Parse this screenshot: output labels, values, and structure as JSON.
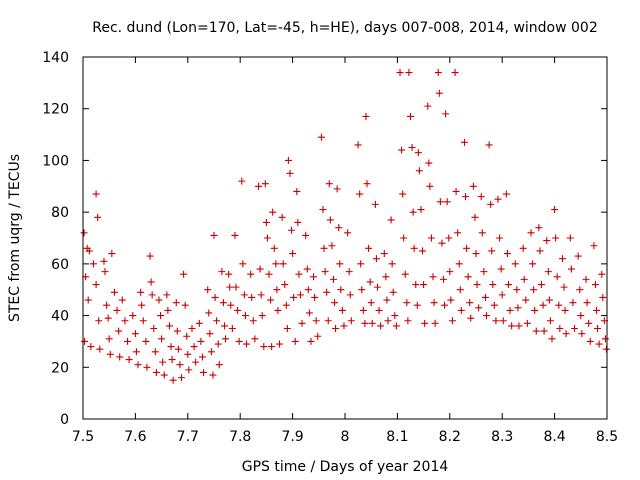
{
  "chart_data": {
    "type": "scatter",
    "title": "Rec. dund (Lon=170, Lat=-45, h=HE), days 007-008, 2014, window 002",
    "xlabel": "GPS time / Days of year 2014",
    "ylabel": "STEC from uqrg / TECUs",
    "xlim": [
      7.5,
      8.5
    ],
    "ylim": [
      0,
      140
    ],
    "xticks": [
      7.5,
      7.6,
      7.7,
      7.8,
      7.9,
      8.0,
      8.1,
      8.2,
      8.3,
      8.4,
      8.5
    ],
    "xtick_labels": [
      "7.5",
      "7.6",
      "7.7",
      "7.8",
      "7.9",
      "8",
      "8.1",
      "8.2",
      "8.3",
      "8.4",
      "8.5"
    ],
    "yticks": [
      0,
      20,
      40,
      60,
      80,
      100,
      120,
      140
    ],
    "ytick_labels": [
      "0",
      "20",
      "40",
      "60",
      "80",
      "100",
      "120",
      "140"
    ],
    "grid": false,
    "marker": "+",
    "marker_color": "#cc0000",
    "series": [
      {
        "name": "STEC",
        "points": [
          [
            7.502,
            72
          ],
          [
            7.505,
            55
          ],
          [
            7.503,
            30
          ],
          [
            7.508,
            66
          ],
          [
            7.512,
            65
          ],
          [
            7.51,
            46
          ],
          [
            7.515,
            28
          ],
          [
            7.525,
            87
          ],
          [
            7.528,
            78
          ],
          [
            7.52,
            60
          ],
          [
            7.525,
            52
          ],
          [
            7.53,
            38
          ],
          [
            7.532,
            27
          ],
          [
            7.54,
            61
          ],
          [
            7.542,
            57
          ],
          [
            7.545,
            44
          ],
          [
            7.548,
            39
          ],
          [
            7.55,
            31
          ],
          [
            7.552,
            25
          ],
          [
            7.555,
            64
          ],
          [
            7.56,
            49
          ],
          [
            7.565,
            42
          ],
          [
            7.568,
            34
          ],
          [
            7.57,
            24
          ],
          [
            7.575,
            46
          ],
          [
            7.58,
            38
          ],
          [
            7.585,
            30
          ],
          [
            7.588,
            23
          ],
          [
            7.595,
            40
          ],
          [
            7.6,
            33
          ],
          [
            7.602,
            26
          ],
          [
            7.605,
            21
          ],
          [
            7.61,
            49
          ],
          [
            7.612,
            44
          ],
          [
            7.615,
            38
          ],
          [
            7.62,
            30
          ],
          [
            7.622,
            20
          ],
          [
            7.628,
            63
          ],
          [
            7.63,
            53
          ],
          [
            7.632,
            48
          ],
          [
            7.635,
            35
          ],
          [
            7.638,
            26
          ],
          [
            7.64,
            18
          ],
          [
            7.645,
            46
          ],
          [
            7.648,
            40
          ],
          [
            7.65,
            31
          ],
          [
            7.652,
            22
          ],
          [
            7.655,
            17
          ],
          [
            7.66,
            48
          ],
          [
            7.662,
            42
          ],
          [
            7.665,
            36
          ],
          [
            7.668,
            28
          ],
          [
            7.67,
            23
          ],
          [
            7.672,
            15
          ],
          [
            7.678,
            45
          ],
          [
            7.68,
            34
          ],
          [
            7.682,
            27
          ],
          [
            7.685,
            21
          ],
          [
            7.688,
            16
          ],
          [
            7.692,
            56
          ],
          [
            7.695,
            44
          ],
          [
            7.698,
            32
          ],
          [
            7.7,
            25
          ],
          [
            7.702,
            19
          ],
          [
            7.708,
            35
          ],
          [
            7.712,
            28
          ],
          [
            7.715,
            22
          ],
          [
            7.722,
            37
          ],
          [
            7.725,
            30
          ],
          [
            7.728,
            24
          ],
          [
            7.73,
            18
          ],
          [
            7.738,
            50
          ],
          [
            7.74,
            41
          ],
          [
            7.742,
            33
          ],
          [
            7.745,
            26
          ],
          [
            7.748,
            17
          ],
          [
            7.75,
            71
          ],
          [
            7.752,
            47
          ],
          [
            7.755,
            38
          ],
          [
            7.758,
            29
          ],
          [
            7.76,
            21
          ],
          [
            7.765,
            57
          ],
          [
            7.768,
            45
          ],
          [
            7.77,
            36
          ],
          [
            7.772,
            31
          ],
          [
            7.778,
            56
          ],
          [
            7.78,
            51
          ],
          [
            7.782,
            44
          ],
          [
            7.785,
            35
          ],
          [
            7.79,
            71
          ],
          [
            7.792,
            51
          ],
          [
            7.795,
            42
          ],
          [
            7.798,
            30
          ],
          [
            7.803,
            92
          ],
          [
            7.805,
            60
          ],
          [
            7.808,
            48
          ],
          [
            7.81,
            40
          ],
          [
            7.812,
            29
          ],
          [
            7.82,
            56
          ],
          [
            7.822,
            47
          ],
          [
            7.825,
            38
          ],
          [
            7.828,
            31
          ],
          [
            7.835,
            90
          ],
          [
            7.838,
            58
          ],
          [
            7.84,
            48
          ],
          [
            7.842,
            40
          ],
          [
            7.845,
            28
          ],
          [
            7.848,
            91
          ],
          [
            7.85,
            76
          ],
          [
            7.852,
            70
          ],
          [
            7.855,
            56
          ],
          [
            7.858,
            46
          ],
          [
            7.86,
            28
          ],
          [
            7.862,
            80
          ],
          [
            7.865,
            66
          ],
          [
            7.868,
            60
          ],
          [
            7.87,
            50
          ],
          [
            7.872,
            42
          ],
          [
            7.875,
            29
          ],
          [
            7.88,
            78
          ],
          [
            7.882,
            60
          ],
          [
            7.885,
            52
          ],
          [
            7.888,
            44
          ],
          [
            7.89,
            35
          ],
          [
            7.892,
            100
          ],
          [
            7.895,
            95
          ],
          [
            7.898,
            73
          ],
          [
            7.9,
            64
          ],
          [
            7.902,
            47
          ],
          [
            7.905,
            30
          ],
          [
            7.908,
            88
          ],
          [
            7.91,
            76
          ],
          [
            7.912,
            56
          ],
          [
            7.915,
            48
          ],
          [
            7.918,
            37
          ],
          [
            7.925,
            71
          ],
          [
            7.928,
            58
          ],
          [
            7.93,
            50
          ],
          [
            7.932,
            41
          ],
          [
            7.935,
            30
          ],
          [
            7.94,
            55
          ],
          [
            7.942,
            47
          ],
          [
            7.945,
            38
          ],
          [
            7.948,
            32
          ],
          [
            7.955,
            109
          ],
          [
            7.958,
            81
          ],
          [
            7.96,
            66
          ],
          [
            7.962,
            57
          ],
          [
            7.965,
            49
          ],
          [
            7.968,
            38
          ],
          [
            7.97,
            91
          ],
          [
            7.972,
            77
          ],
          [
            7.975,
            67
          ],
          [
            7.978,
            54
          ],
          [
            7.98,
            45
          ],
          [
            7.982,
            35
          ],
          [
            7.985,
            89
          ],
          [
            7.988,
            74
          ],
          [
            7.99,
            60
          ],
          [
            7.992,
            50
          ],
          [
            7.995,
            42
          ],
          [
            7.998,
            36
          ],
          [
            8.005,
            72
          ],
          [
            8.008,
            57
          ],
          [
            8.01,
            48
          ],
          [
            8.012,
            38
          ],
          [
            8.025,
            106
          ],
          [
            8.028,
            87
          ],
          [
            8.03,
            60
          ],
          [
            8.032,
            50
          ],
          [
            8.035,
            42
          ],
          [
            8.038,
            37
          ],
          [
            8.04,
            117
          ],
          [
            8.042,
            91
          ],
          [
            8.045,
            66
          ],
          [
            8.048,
            53
          ],
          [
            8.05,
            45
          ],
          [
            8.052,
            37
          ],
          [
            8.058,
            83
          ],
          [
            8.06,
            62
          ],
          [
            8.062,
            51
          ],
          [
            8.065,
            42
          ],
          [
            8.068,
            36
          ],
          [
            8.075,
            64
          ],
          [
            8.078,
            55
          ],
          [
            8.08,
            46
          ],
          [
            8.082,
            38
          ],
          [
            8.088,
            77
          ],
          [
            8.09,
            60
          ],
          [
            8.092,
            49
          ],
          [
            8.095,
            40
          ],
          [
            8.098,
            36
          ],
          [
            8.105,
            134
          ],
          [
            8.108,
            104
          ],
          [
            8.11,
            87
          ],
          [
            8.112,
            70
          ],
          [
            8.115,
            56
          ],
          [
            8.118,
            45
          ],
          [
            8.12,
            38
          ],
          [
            8.122,
            134
          ],
          [
            8.125,
            117
          ],
          [
            8.128,
            105
          ],
          [
            8.13,
            80
          ],
          [
            8.132,
            66
          ],
          [
            8.135,
            52
          ],
          [
            8.138,
            44
          ],
          [
            8.14,
            103
          ],
          [
            8.142,
            96
          ],
          [
            8.145,
            81
          ],
          [
            8.148,
            65
          ],
          [
            8.15,
            52
          ],
          [
            8.152,
            37
          ],
          [
            8.158,
            121
          ],
          [
            8.16,
            99
          ],
          [
            8.162,
            90
          ],
          [
            8.165,
            70
          ],
          [
            8.168,
            55
          ],
          [
            8.17,
            45
          ],
          [
            8.172,
            37
          ],
          [
            8.178,
            134
          ],
          [
            8.18,
            126
          ],
          [
            8.182,
            84
          ],
          [
            8.185,
            68
          ],
          [
            8.188,
            54
          ],
          [
            8.19,
            44
          ],
          [
            8.192,
            118
          ],
          [
            8.195,
            84
          ],
          [
            8.198,
            70
          ],
          [
            8.2,
            57
          ],
          [
            8.202,
            46
          ],
          [
            8.205,
            38
          ],
          [
            8.21,
            134
          ],
          [
            8.212,
            88
          ],
          [
            8.215,
            72
          ],
          [
            8.218,
            60
          ],
          [
            8.22,
            50
          ],
          [
            8.222,
            42
          ],
          [
            8.228,
            107
          ],
          [
            8.23,
            86
          ],
          [
            8.232,
            66
          ],
          [
            8.235,
            55
          ],
          [
            8.238,
            45
          ],
          [
            8.24,
            39
          ],
          [
            8.245,
            90
          ],
          [
            8.248,
            78
          ],
          [
            8.25,
            64
          ],
          [
            8.252,
            52
          ],
          [
            8.255,
            43
          ],
          [
            8.26,
            86
          ],
          [
            8.262,
            72
          ],
          [
            8.265,
            57
          ],
          [
            8.268,
            47
          ],
          [
            8.27,
            40
          ],
          [
            8.275,
            106
          ],
          [
            8.278,
            83
          ],
          [
            8.28,
            65
          ],
          [
            8.282,
            52
          ],
          [
            8.285,
            44
          ],
          [
            8.288,
            38
          ],
          [
            8.292,
            85
          ],
          [
            8.295,
            70
          ],
          [
            8.298,
            58
          ],
          [
            8.3,
            48
          ],
          [
            8.302,
            38
          ],
          [
            8.308,
            87
          ],
          [
            8.31,
            64
          ],
          [
            8.312,
            52
          ],
          [
            8.315,
            42
          ],
          [
            8.318,
            36
          ],
          [
            8.325,
            60
          ],
          [
            8.328,
            50
          ],
          [
            8.33,
            43
          ],
          [
            8.332,
            36
          ],
          [
            8.34,
            66
          ],
          [
            8.342,
            54
          ],
          [
            8.345,
            46
          ],
          [
            8.348,
            37
          ],
          [
            8.355,
            72
          ],
          [
            8.358,
            60
          ],
          [
            8.36,
            50
          ],
          [
            8.362,
            42
          ],
          [
            8.365,
            34
          ],
          [
            8.37,
            74
          ],
          [
            8.372,
            65
          ],
          [
            8.375,
            52
          ],
          [
            8.378,
            44
          ],
          [
            8.38,
            34
          ],
          [
            8.385,
            69
          ],
          [
            8.388,
            57
          ],
          [
            8.39,
            46
          ],
          [
            8.392,
            38
          ],
          [
            8.395,
            31
          ],
          [
            8.4,
            81
          ],
          [
            8.402,
            70
          ],
          [
            8.405,
            55
          ],
          [
            8.408,
            44
          ],
          [
            8.41,
            35
          ],
          [
            8.415,
            62
          ],
          [
            8.418,
            51
          ],
          [
            8.42,
            42
          ],
          [
            8.422,
            33
          ],
          [
            8.43,
            70
          ],
          [
            8.432,
            58
          ],
          [
            8.435,
            45
          ],
          [
            8.438,
            35
          ],
          [
            8.445,
            63
          ],
          [
            8.448,
            50
          ],
          [
            8.45,
            40
          ],
          [
            8.452,
            33
          ],
          [
            8.46,
            54
          ],
          [
            8.462,
            45
          ],
          [
            8.465,
            37
          ],
          [
            8.468,
            30
          ],
          [
            8.475,
            67
          ],
          [
            8.478,
            52
          ],
          [
            8.48,
            42
          ],
          [
            8.482,
            35
          ],
          [
            8.485,
            29
          ],
          [
            8.49,
            56
          ],
          [
            8.492,
            47
          ],
          [
            8.495,
            38
          ],
          [
            8.497,
            31
          ],
          [
            8.499,
            27
          ]
        ]
      }
    ]
  }
}
